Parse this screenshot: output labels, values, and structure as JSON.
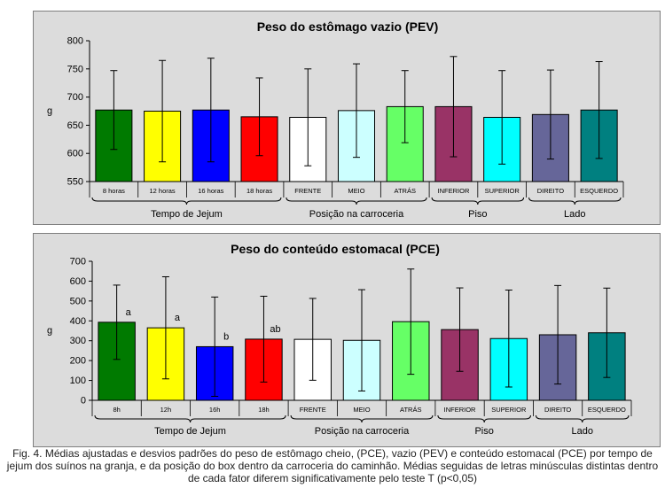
{
  "chart_data": [
    {
      "type": "bar",
      "title": "Peso do estômago vazio (PEV)",
      "ylabel": "g",
      "ylim": [
        550,
        800
      ],
      "yticks": [
        550,
        600,
        650,
        700,
        750,
        800
      ],
      "categories": [
        "8 horas",
        "12 horas",
        "16 horas",
        "18 horas",
        "FRENTE",
        "MEIO",
        "ATRÁS",
        "INFERIOR",
        "SUPERIOR",
        "DIREITO",
        "ESQUERDO"
      ],
      "category_labels": [
        "8 horas",
        "12 horas",
        "16 horas",
        "18 horas",
        "FRENTE",
        "MEIO",
        "ATRÁS",
        "INFERIOR",
        "SUPERIOR",
        "DIREITO",
        "ESQUERDO"
      ],
      "values": [
        677,
        675,
        677,
        665,
        664,
        676,
        683,
        683,
        664,
        669,
        677
      ],
      "errors": [
        70,
        90,
        92,
        69,
        86,
        83,
        64,
        89,
        83,
        79,
        86
      ],
      "letters": [
        "",
        "",
        "",
        "",
        "",
        "",
        "",
        "",
        "",
        "",
        ""
      ],
      "colors": [
        "#007a00",
        "#ffff00",
        "#0000ff",
        "#ff0000",
        "#ffffff",
        "#ccffff",
        "#66ff66",
        "#993366",
        "#00ffff",
        "#666699",
        "#008080"
      ],
      "groups": [
        {
          "label": "Tempo de Jejum",
          "start": 0,
          "end": 3
        },
        {
          "label": "Posição na carroceria",
          "start": 4,
          "end": 6
        },
        {
          "label": "Piso",
          "start": 7,
          "end": 8
        },
        {
          "label": "Lado",
          "start": 9,
          "end": 10
        }
      ]
    },
    {
      "type": "bar",
      "title": "Peso do conteúdo estomacal (PCE)",
      "ylabel": "g",
      "ylim": [
        0,
        700
      ],
      "yticks": [
        0,
        100,
        200,
        300,
        400,
        500,
        600,
        700
      ],
      "categories": [
        "8h",
        "12h",
        "16h",
        "18h",
        "FRENTE",
        "MEIO",
        "ATRÁS",
        "INFERIOR",
        "SUPERIOR",
        "DIREITO",
        "ESQUERDO"
      ],
      "category_labels": [
        "8h",
        "12h",
        "16h",
        "18h",
        "FRENTE",
        "MEIO",
        "ATRÁS",
        "INFERIOR",
        "SUPERIOR",
        "DIREITO",
        "ESQUERDO"
      ],
      "values": [
        393,
        365,
        270,
        308,
        307,
        302,
        396,
        356,
        311,
        330,
        340
      ],
      "errors": [
        187,
        257,
        250,
        216,
        206,
        255,
        265,
        210,
        244,
        248,
        225
      ],
      "letters": [
        "a",
        "a",
        "b",
        "ab",
        "",
        "",
        "",
        "",
        "",
        "",
        ""
      ],
      "colors": [
        "#007a00",
        "#ffff00",
        "#0000ff",
        "#ff0000",
        "#ffffff",
        "#ccffff",
        "#66ff66",
        "#993366",
        "#00ffff",
        "#666699",
        "#008080"
      ],
      "groups": [
        {
          "label": "Tempo de Jejum",
          "start": 0,
          "end": 3
        },
        {
          "label": "Posição na carroceria",
          "start": 4,
          "end": 6
        },
        {
          "label": "Piso",
          "start": 7,
          "end": 8
        },
        {
          "label": "Lado",
          "start": 9,
          "end": 10
        }
      ]
    }
  ],
  "caption": "Fig. 4. Médias ajustadas e desvios padrões do peso de estômago cheio, (PCE), vazio (PEV) e conteúdo estomacal (PCE) por tempo de jejum dos suínos na granja, e da posição do box dentro da carroceria do caminhão. Médias seguidas de letras minúsculas distintas dentro de cada fator diferem significativamente pelo teste T (p<0,05)"
}
